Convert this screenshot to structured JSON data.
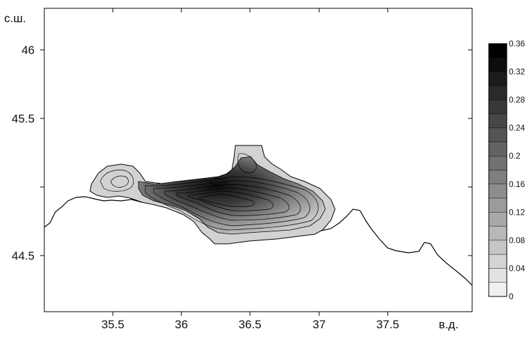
{
  "map": {
    "x_unit_label": "в.д.",
    "y_unit_label": "с.ш.",
    "x_ticks": [
      "35.5",
      "36",
      "36.5",
      "37",
      "37.5"
    ],
    "y_ticks": [
      "46",
      "45.5",
      "44.5"
    ],
    "colorbar_labels": [
      "0.36",
      "0.32",
      "0.28",
      "0.24",
      "0.2",
      "0.16",
      "0.12",
      "0.08",
      "0.04",
      "0"
    ],
    "colorbar_levels": 18,
    "colorbar_max": 0.36
  }
}
